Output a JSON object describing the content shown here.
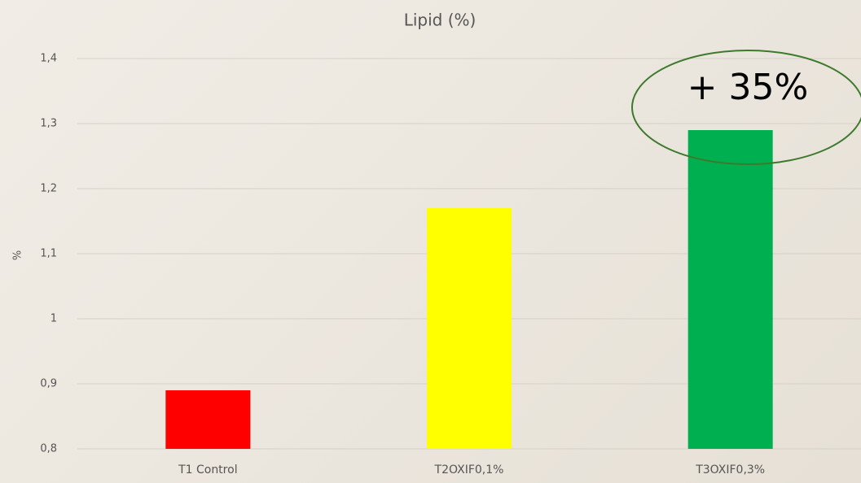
{
  "chart_data": {
    "type": "bar",
    "title": "Lipid (%)",
    "y_label": "%",
    "categories": [
      "T1 Control",
      "T2OXIF0,1%",
      "T3OXIF0,3%"
    ],
    "values": [
      0.89,
      1.17,
      1.29
    ],
    "colors": [
      "#ff0000",
      "#ffff00",
      "#00b050"
    ],
    "ylim": [
      0.8,
      1.4
    ],
    "yticks": [
      {
        "value": 0.8,
        "label": "0,8"
      },
      {
        "value": 0.9,
        "label": "0,9"
      },
      1,
      {
        "value": 1.1,
        "label": "1,1"
      },
      {
        "value": 1.2,
        "label": "1,2"
      },
      {
        "value": 1.3,
        "label": "1,3"
      },
      {
        "value": 1.4,
        "label": "1,4"
      }
    ],
    "grid": true,
    "annotation": "+ 35%"
  }
}
